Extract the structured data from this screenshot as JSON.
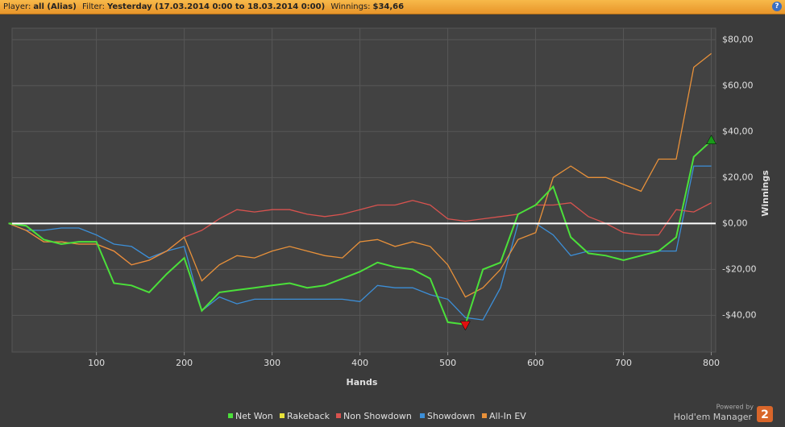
{
  "header": {
    "player_label": "Player:",
    "player": "all (Alias)",
    "filter_label": "Filter:",
    "filter": "Yesterday (17.03.2014 0:00 to 18.03.2014 0:00)",
    "winnings_label": "Winnings:",
    "winnings": "$34,66",
    "help": "?"
  },
  "footer": {
    "powered_by": "Powered by",
    "brand": "Hold'em Manager",
    "logo": "2"
  },
  "chart_data": {
    "type": "line",
    "x_label": "Hands",
    "y_label": "Winnings",
    "x": [
      0,
      20,
      40,
      60,
      80,
      100,
      120,
      140,
      160,
      180,
      200,
      220,
      240,
      260,
      280,
      300,
      320,
      340,
      360,
      380,
      400,
      420,
      440,
      460,
      480,
      500,
      520,
      540,
      560,
      580,
      600,
      620,
      640,
      660,
      680,
      700,
      720,
      740,
      760,
      780,
      800
    ],
    "series": [
      {
        "name": "Net Won",
        "color": "#4be03a",
        "values": [
          0,
          -1,
          -7,
          -9,
          -8,
          -8,
          -26,
          -27,
          -30,
          -22,
          -15,
          -38,
          -30,
          -29,
          -28,
          -27,
          -26,
          -28,
          -27,
          -24,
          -21,
          -17,
          -19,
          -20,
          -24,
          -43,
          -44,
          -20,
          -17,
          4,
          8,
          16,
          -6,
          -13,
          -14,
          -16,
          -14,
          -12,
          -6,
          29,
          36
        ]
      },
      {
        "name": "Rakeback",
        "color": "#e8e23a",
        "values": [
          0,
          0,
          0,
          0,
          0,
          0,
          0,
          0,
          0,
          0,
          0,
          0,
          0,
          0,
          0,
          0,
          0,
          0,
          0,
          0,
          0,
          0,
          0,
          0,
          0,
          0,
          0,
          0,
          0,
          0,
          0,
          0,
          0,
          0,
          0,
          0,
          0,
          0,
          0,
          0,
          0
        ]
      },
      {
        "name": "Non Showdown",
        "color": "#d9534f",
        "values": [
          0,
          -3,
          -8,
          -8,
          -9,
          -9,
          -12,
          -18,
          -16,
          -12,
          -6,
          -3,
          2,
          6,
          5,
          6,
          6,
          4,
          3,
          4,
          6,
          8,
          8,
          10,
          8,
          2,
          1,
          2,
          3,
          4,
          8,
          8,
          9,
          3,
          0,
          -4,
          -5,
          -5,
          6,
          5,
          9
        ]
      },
      {
        "name": "Showdown",
        "color": "#3c8fd8",
        "values": [
          0,
          -3,
          -3,
          -2,
          -2,
          -5,
          -9,
          -10,
          -15,
          -12,
          -10,
          -38,
          -32,
          -35,
          -33,
          -33,
          -33,
          -33,
          -33,
          -33,
          -34,
          -27,
          -28,
          -28,
          -31,
          -33,
          -41,
          -42,
          -28,
          0,
          0,
          -5,
          -14,
          -12,
          -12,
          -12,
          -12,
          -12,
          -12,
          25,
          25
        ]
      },
      {
        "name": "All-In EV",
        "color": "#e8913a",
        "values": [
          0,
          -3,
          -8,
          -8,
          -9,
          -9,
          -12,
          -18,
          -16,
          -12,
          -6,
          -25,
          -18,
          -14,
          -15,
          -12,
          -10,
          -12,
          -14,
          -15,
          -8,
          -7,
          -10,
          -8,
          -10,
          -18,
          -32,
          -28,
          -20,
          -7,
          -4,
          20,
          25,
          20,
          20,
          17,
          14,
          28,
          28,
          68,
          74
        ]
      }
    ],
    "xlim": [
      4,
      805
    ],
    "xticks": [
      100,
      200,
      300,
      400,
      500,
      600,
      700,
      800
    ],
    "ylim": [
      -56,
      85
    ],
    "yticks": [
      {
        "value": -40,
        "label": "-$40,00"
      },
      {
        "value": -20,
        "label": "-$20,00"
      },
      {
        "value": 0,
        "label": "$0,00"
      },
      {
        "value": 20,
        "label": "$20,00"
      },
      {
        "value": 40,
        "label": "$40,00"
      },
      {
        "value": 60,
        "label": "$60,00"
      },
      {
        "value": 80,
        "label": "$80,00"
      }
    ],
    "grid": true,
    "legend": "bottom"
  }
}
